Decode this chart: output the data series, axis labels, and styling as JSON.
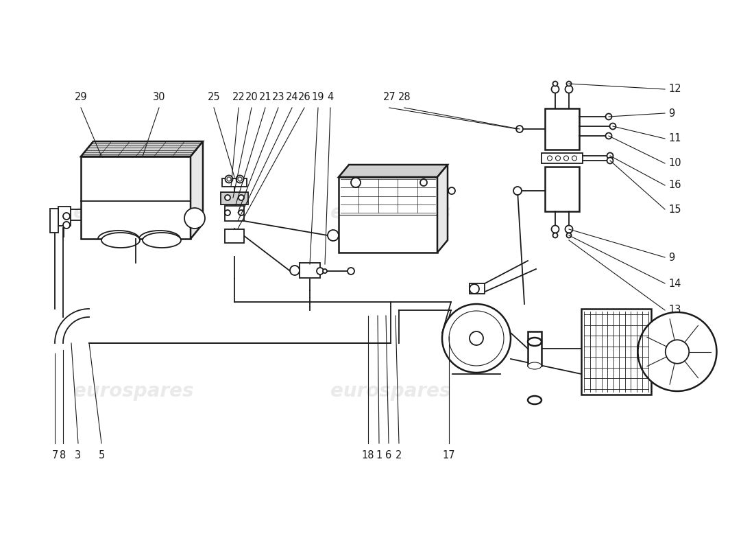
{
  "bg_color": "#ffffff",
  "line_color": "#1a1a1a",
  "fill_light": "#e8e8e8",
  "fill_medium": "#d0d0d0",
  "watermark_color": "#c8c8c8",
  "watermark_text": "eurospares",
  "watermark_alpha": 0.38,
  "label_fontsize": 10.5,
  "lw_main": 1.3,
  "lw_thick": 1.8,
  "lw_thin": 0.8
}
